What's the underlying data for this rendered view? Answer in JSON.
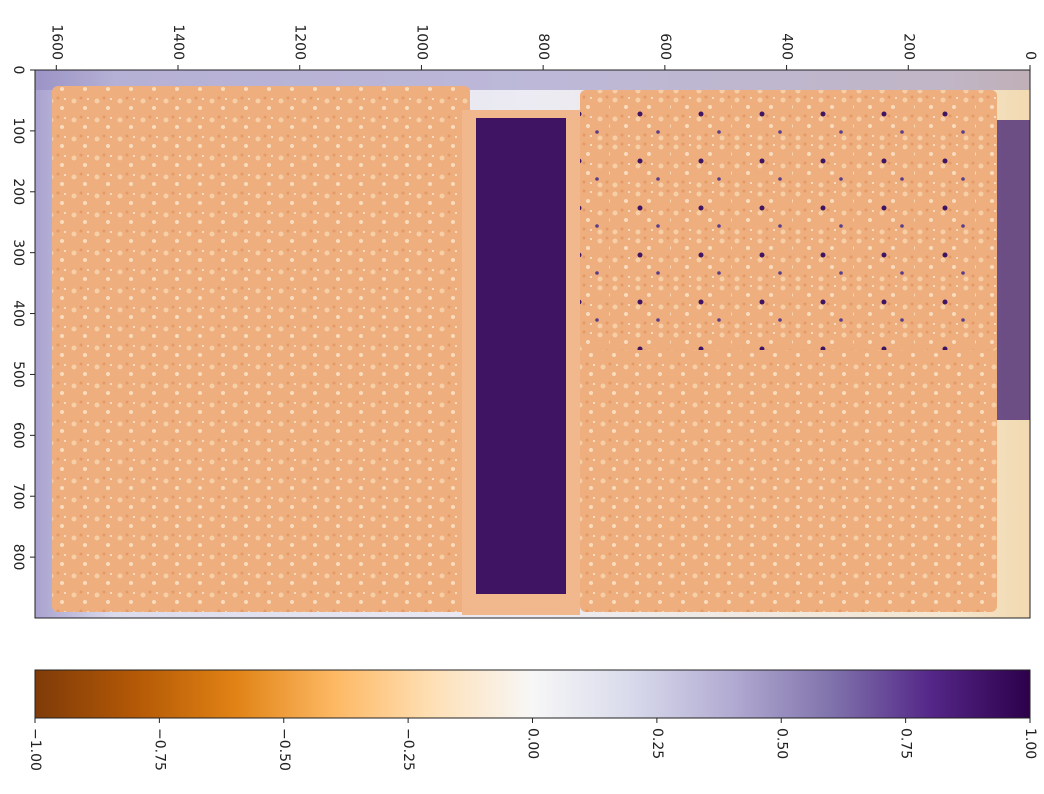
{
  "chart_data": {
    "type": "image",
    "xlim": [
      1635,
      0
    ],
    "xticks": [
      0,
      200,
      400,
      600,
      800,
      1000,
      1200,
      1400,
      1600
    ],
    "ylim": [
      0,
      900
    ],
    "yticks": [
      0,
      100,
      200,
      300,
      400,
      500,
      600,
      700,
      800
    ],
    "colorbar": {
      "lim": [
        -1,
        1
      ],
      "colors": [
        "#7f3b08",
        "#b35806",
        "#e08214",
        "#fdb863",
        "#fee0b6",
        "#f7f7f7",
        "#d8daeb",
        "#b2abd2",
        "#8073ac",
        "#542788",
        "#2d004b"
      ],
      "ticks": [
        {
          "value": -1,
          "label": "−1.00"
        },
        {
          "value": -0.75,
          "label": "−0.75"
        },
        {
          "value": -0.5,
          "label": "−0.50"
        },
        {
          "value": -0.25,
          "label": "−0.25"
        },
        {
          "value": 0,
          "label": "0.00"
        },
        {
          "value": 0.25,
          "label": "0.25"
        },
        {
          "value": 0.5,
          "label": "0.50"
        },
        {
          "value": 0.75,
          "label": "0.75"
        },
        {
          "value": 1,
          "label": "1.00"
        }
      ]
    }
  }
}
